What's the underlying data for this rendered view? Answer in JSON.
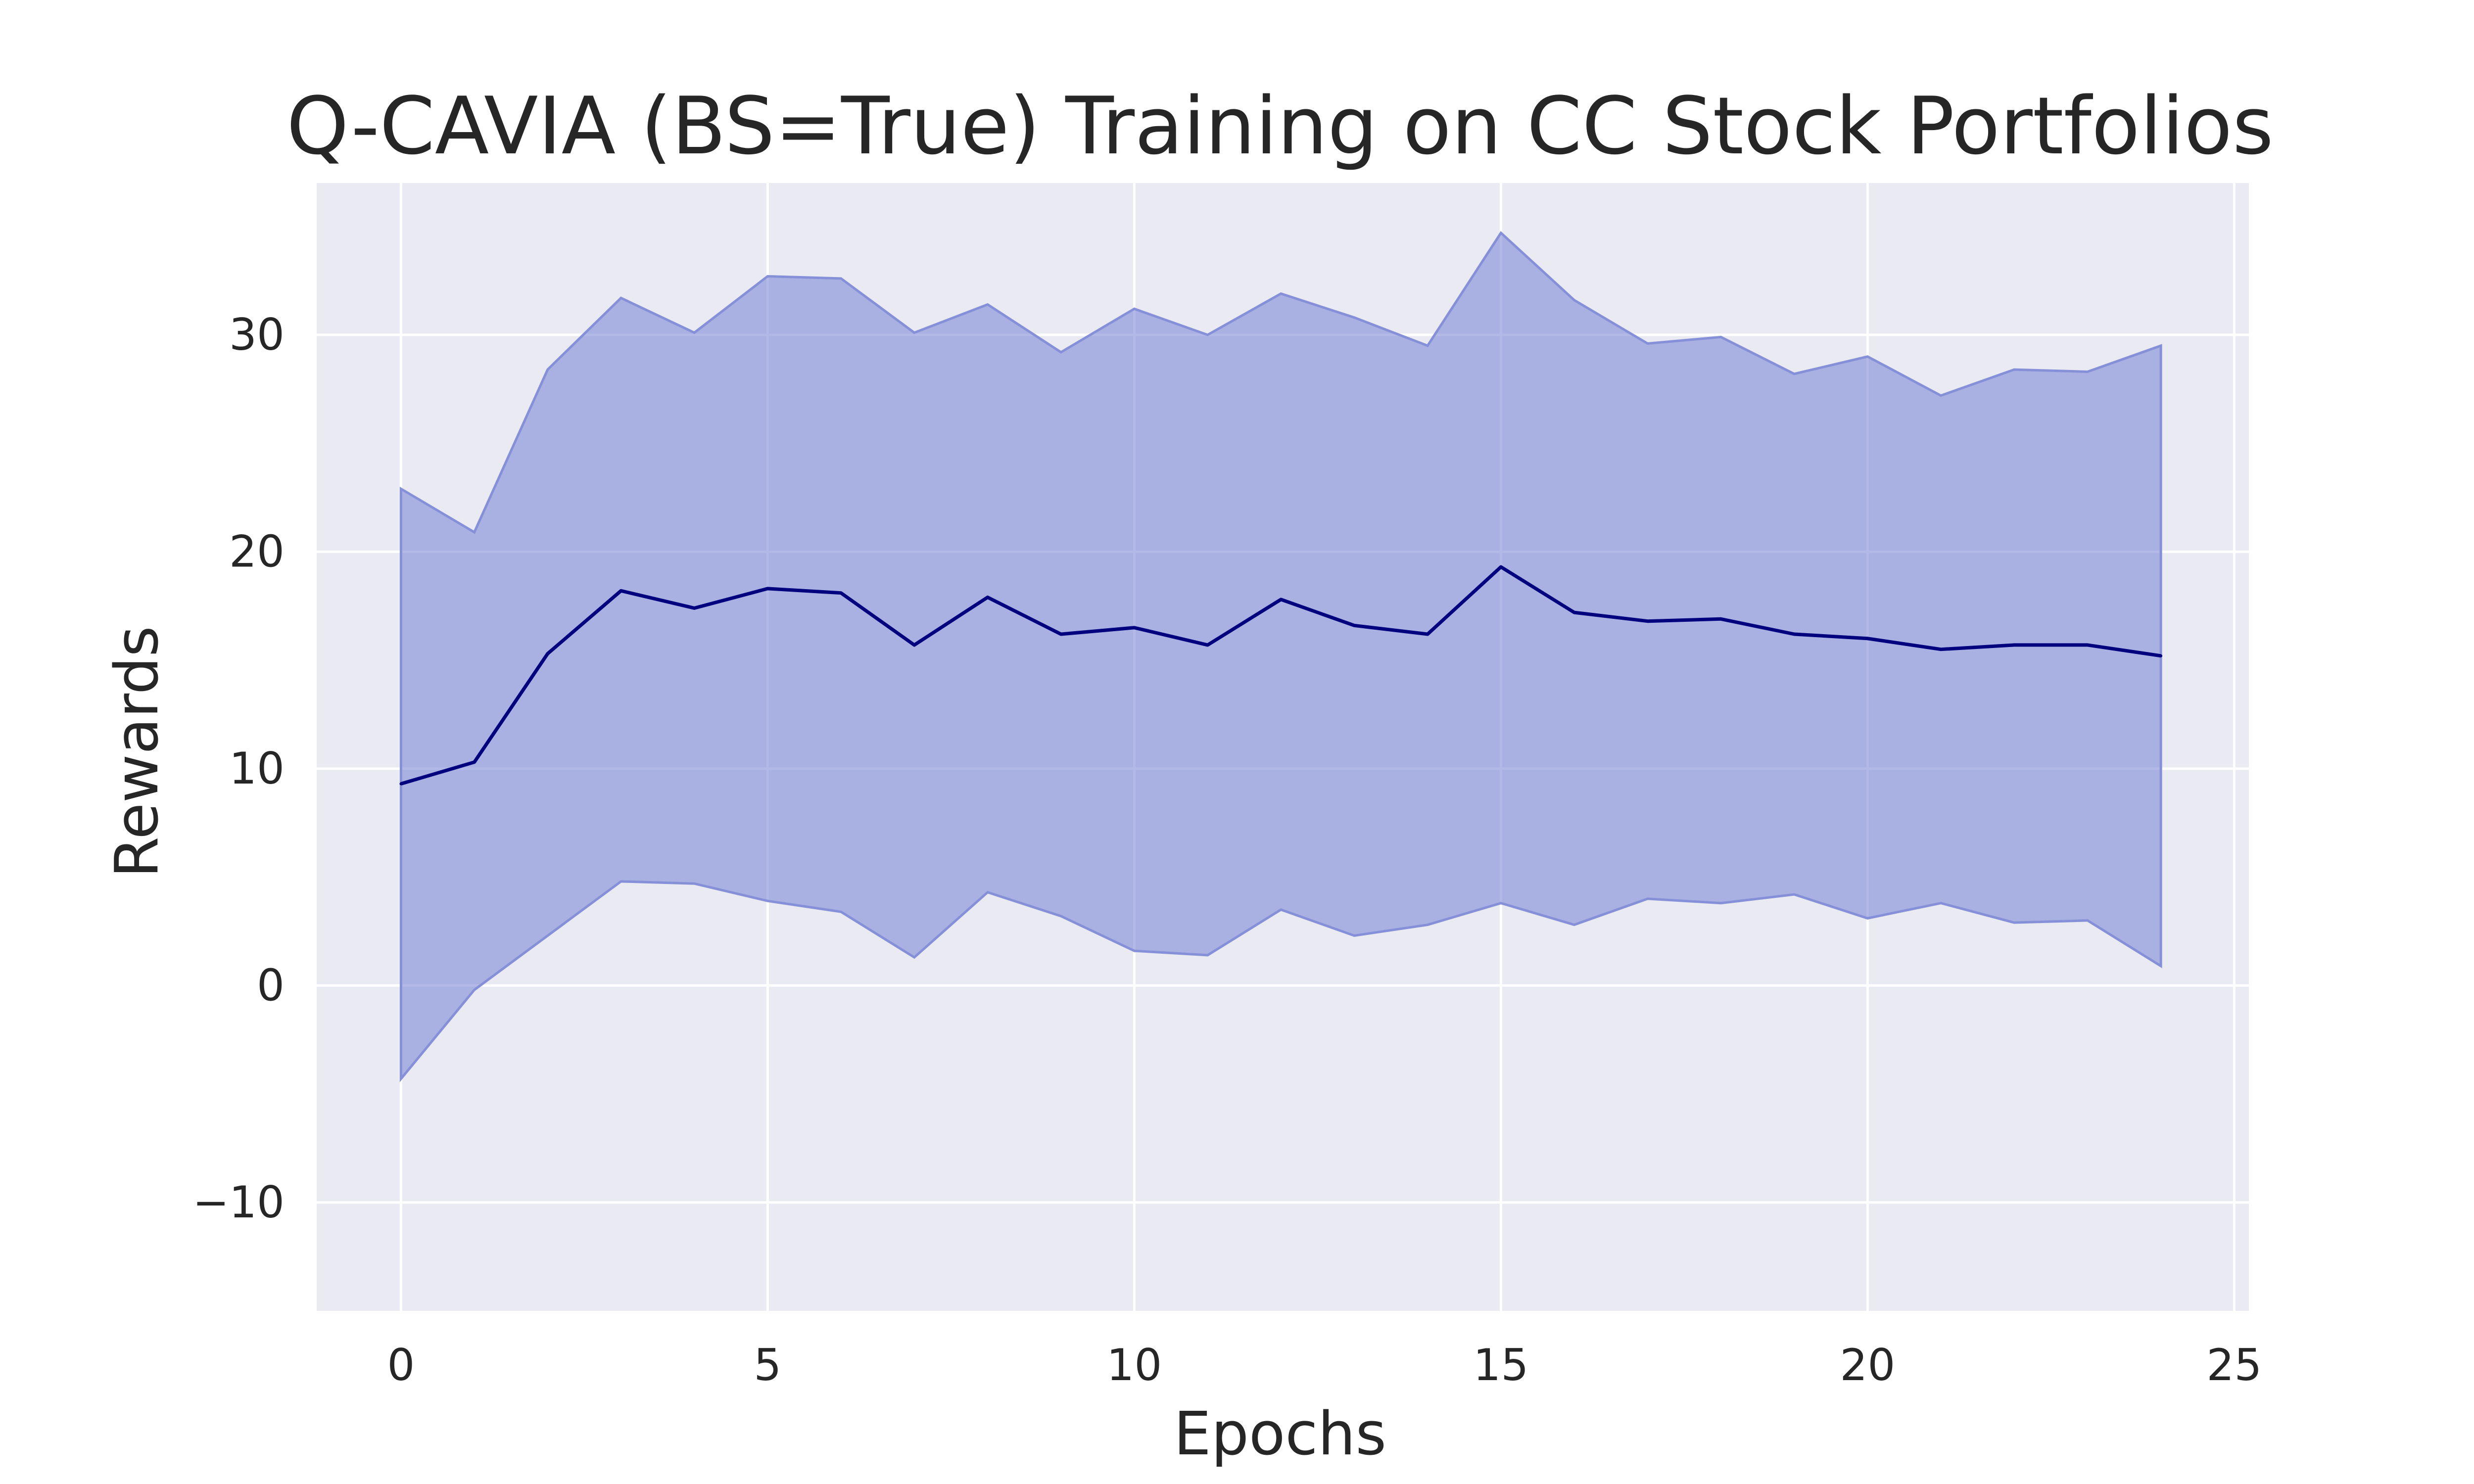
{
  "chart_data": {
    "type": "line",
    "title": "Q-CAVIA (BS=True) Training on CC Stock Portfolios",
    "xlabel": "Epochs",
    "ylabel": "Rewards",
    "xlim": [
      -1.15,
      25.2
    ],
    "ylim": [
      -15,
      37
    ],
    "xticks": [
      0,
      5,
      10,
      15,
      20,
      25
    ],
    "xtick_labels": [
      "0",
      "5",
      "10",
      "15",
      "20",
      "25"
    ],
    "yticks": [
      -10,
      0,
      10,
      20,
      30
    ],
    "ytick_labels": [
      "−10",
      "0",
      "10",
      "20",
      "30"
    ],
    "grid": true,
    "x": [
      0,
      1,
      2,
      3,
      4,
      5,
      6,
      7,
      8,
      9,
      10,
      11,
      12,
      13,
      14,
      15,
      16,
      17,
      18,
      19,
      20,
      21,
      22,
      23,
      24
    ],
    "series": [
      {
        "values": [
          9.3,
          10.3,
          15.3,
          18.2,
          17.4,
          18.3,
          18.1,
          15.7,
          17.9,
          16.2,
          16.5,
          15.7,
          17.8,
          16.6,
          16.2,
          19.3,
          17.2,
          16.8,
          16.9,
          16.2,
          16.0,
          15.5,
          15.7,
          15.7,
          15.2
        ],
        "upper": [
          22.9,
          20.9,
          28.4,
          31.7,
          30.1,
          32.7,
          32.6,
          30.1,
          31.4,
          29.2,
          31.2,
          30.0,
          31.9,
          30.8,
          29.5,
          34.7,
          31.6,
          29.6,
          29.9,
          28.2,
          29.0,
          27.2,
          28.4,
          28.3,
          29.5
        ],
        "lower": [
          -4.3,
          -0.2,
          2.3,
          4.8,
          4.7,
          3.9,
          3.4,
          1.3,
          4.3,
          3.2,
          1.6,
          1.4,
          3.5,
          2.3,
          2.8,
          3.8,
          2.8,
          4.0,
          3.8,
          4.2,
          3.1,
          3.8,
          2.9,
          3.0,
          0.9
        ]
      }
    ],
    "colors": {
      "line": "#00007f",
      "band": "#7b86d6",
      "band_edge": "#8690d8",
      "plot_bg": "#eaeaf2",
      "grid": "#ffffff"
    }
  }
}
